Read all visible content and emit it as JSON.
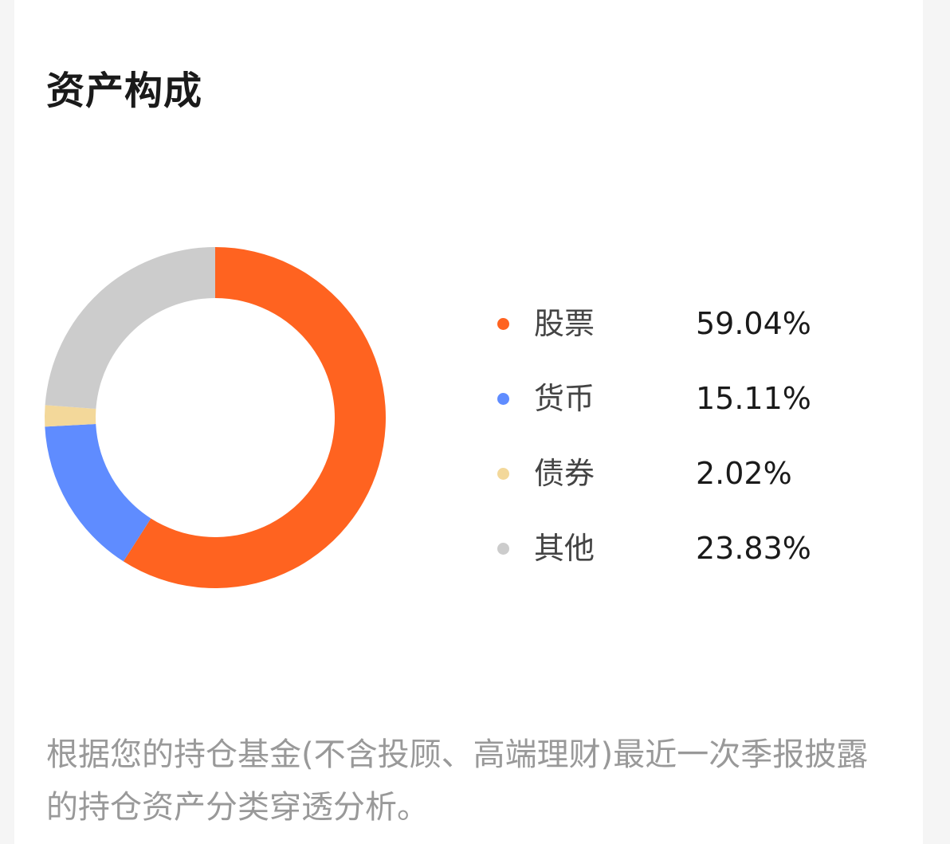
{
  "header": {
    "title": "资产构成"
  },
  "chart_data": {
    "type": "pie",
    "categories": [
      "股票",
      "货币",
      "债券",
      "其他"
    ],
    "values": [
      59.04,
      15.11,
      2.02,
      23.83
    ],
    "value_labels": [
      "59.04%",
      "15.11%",
      "2.02%",
      "23.83%"
    ],
    "colors": [
      "#FF6320",
      "#5F8CFF",
      "#F3D89A",
      "#CCCCCC"
    ],
    "style": "donut",
    "legend_position": "right"
  },
  "footnote": "根据您的持仓基金(不含投顾、高端理财)最近一次季报披露的持仓资产分类穿透分析。"
}
